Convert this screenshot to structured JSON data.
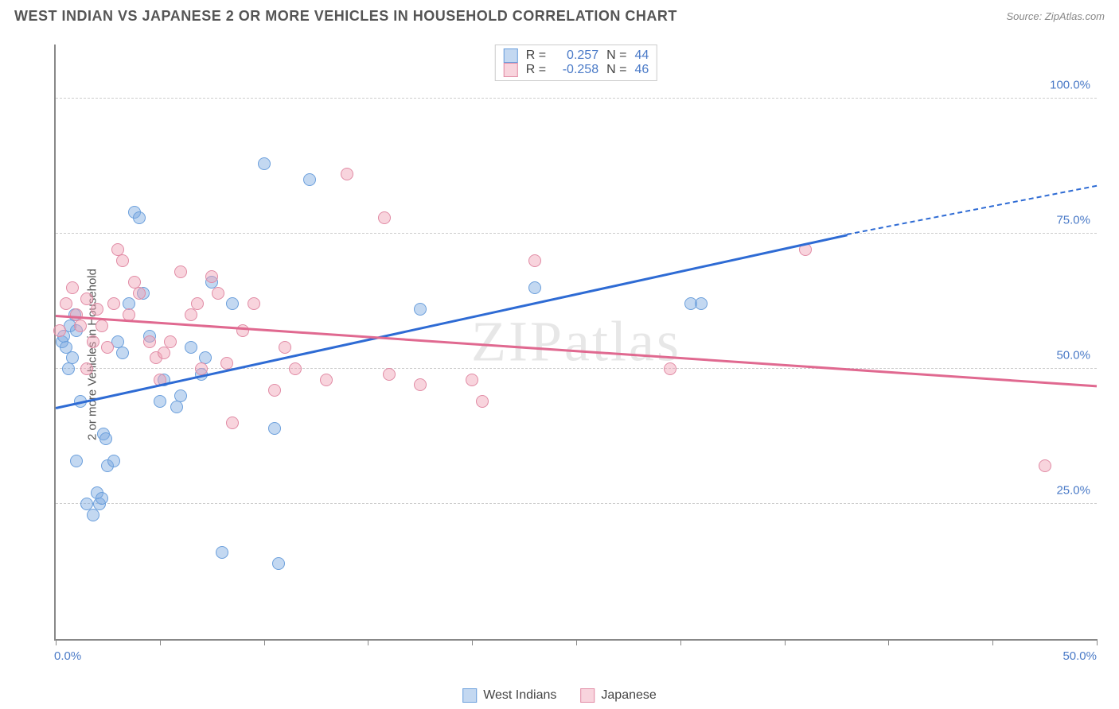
{
  "title": "WEST INDIAN VS JAPANESE 2 OR MORE VEHICLES IN HOUSEHOLD CORRELATION CHART",
  "source": "Source: ZipAtlas.com",
  "watermark": "ZIPatlas",
  "y_axis_label": "2 or more Vehicles in Household",
  "chart": {
    "type": "scatter",
    "xlim": [
      0,
      50
    ],
    "ylim": [
      0,
      110
    ],
    "x_ticks": [
      0,
      5,
      10,
      15,
      20,
      25,
      30,
      35,
      40,
      45,
      50
    ],
    "x_tick_labels": {
      "0": "0.0%",
      "50": "50.0%"
    },
    "y_ticks": [
      25,
      50,
      75,
      100
    ],
    "y_tick_labels": [
      "25.0%",
      "50.0%",
      "75.0%",
      "100.0%"
    ],
    "grid_color": "#cccccc",
    "background_color": "#ffffff",
    "point_radius": 8,
    "series": [
      {
        "name": "West Indians",
        "fill": "rgba(122,168,224,0.45)",
        "stroke": "#6b9fdc",
        "R": "0.257",
        "N": "44",
        "trend": {
          "x0": 0,
          "y0": 43,
          "x1": 38,
          "y1": 75,
          "color": "#2e6bd4",
          "dash_x1": 50,
          "dash_y1": 84
        },
        "points": [
          [
            0.3,
            55
          ],
          [
            0.5,
            54
          ],
          [
            0.6,
            50
          ],
          [
            0.8,
            52
          ],
          [
            0.7,
            58
          ],
          [
            0.9,
            60
          ],
          [
            0.4,
            56
          ],
          [
            1.0,
            57
          ],
          [
            1.2,
            44
          ],
          [
            1.0,
            33
          ],
          [
            1.5,
            25
          ],
          [
            1.8,
            23
          ],
          [
            2.0,
            27
          ],
          [
            2.1,
            25
          ],
          [
            2.2,
            26
          ],
          [
            2.5,
            32
          ],
          [
            2.8,
            33
          ],
          [
            2.3,
            38
          ],
          [
            2.4,
            37
          ],
          [
            3.0,
            55
          ],
          [
            3.2,
            53
          ],
          [
            3.5,
            62
          ],
          [
            3.8,
            79
          ],
          [
            4.0,
            78
          ],
          [
            4.2,
            64
          ],
          [
            4.5,
            56
          ],
          [
            5.0,
            44
          ],
          [
            5.2,
            48
          ],
          [
            5.8,
            43
          ],
          [
            6.0,
            45
          ],
          [
            6.5,
            54
          ],
          [
            7.0,
            49
          ],
          [
            7.2,
            52
          ],
          [
            7.5,
            66
          ],
          [
            8.0,
            16
          ],
          [
            8.5,
            62
          ],
          [
            10.0,
            88
          ],
          [
            10.5,
            39
          ],
          [
            10.7,
            14
          ],
          [
            12.2,
            85
          ],
          [
            17.5,
            61
          ],
          [
            23.0,
            65
          ],
          [
            30.5,
            62
          ],
          [
            31.0,
            62
          ]
        ]
      },
      {
        "name": "Japanese",
        "fill": "rgba(240,160,180,0.45)",
        "stroke": "#e18ba5",
        "R": "-0.258",
        "N": "46",
        "trend": {
          "x0": 0,
          "y0": 60,
          "x1": 50,
          "y1": 47,
          "color": "#e06990"
        },
        "points": [
          [
            0.5,
            62
          ],
          [
            0.8,
            65
          ],
          [
            1.0,
            60
          ],
          [
            1.2,
            58
          ],
          [
            1.5,
            63
          ],
          [
            1.8,
            55
          ],
          [
            1.5,
            50
          ],
          [
            2.0,
            61
          ],
          [
            2.2,
            58
          ],
          [
            2.5,
            54
          ],
          [
            2.8,
            62
          ],
          [
            3.0,
            72
          ],
          [
            3.2,
            70
          ],
          [
            3.5,
            60
          ],
          [
            3.8,
            66
          ],
          [
            4.0,
            64
          ],
          [
            4.5,
            55
          ],
          [
            4.8,
            52
          ],
          [
            5.0,
            48
          ],
          [
            5.2,
            53
          ],
          [
            5.5,
            55
          ],
          [
            6.0,
            68
          ],
          [
            6.5,
            60
          ],
          [
            6.8,
            62
          ],
          [
            7.0,
            50
          ],
          [
            7.5,
            67
          ],
          [
            7.8,
            64
          ],
          [
            8.2,
            51
          ],
          [
            8.5,
            40
          ],
          [
            9.0,
            57
          ],
          [
            9.5,
            62
          ],
          [
            10.5,
            46
          ],
          [
            11.0,
            54
          ],
          [
            11.5,
            50
          ],
          [
            13.0,
            48
          ],
          [
            14.0,
            86
          ],
          [
            15.8,
            78
          ],
          [
            16.0,
            49
          ],
          [
            17.5,
            47
          ],
          [
            20.0,
            48
          ],
          [
            20.5,
            44
          ],
          [
            23.0,
            70
          ],
          [
            29.5,
            50
          ],
          [
            36.0,
            72
          ],
          [
            47.5,
            32
          ],
          [
            0.2,
            57
          ]
        ]
      }
    ]
  },
  "stat_legend": {
    "rows": [
      {
        "swatch_fill": "rgba(122,168,224,0.45)",
        "swatch_stroke": "#6b9fdc",
        "R_label": "R =",
        "R": "0.257",
        "N_label": "N =",
        "N": "44"
      },
      {
        "swatch_fill": "rgba(240,160,180,0.45)",
        "swatch_stroke": "#e18ba5",
        "R_label": "R =",
        "R": "-0.258",
        "N_label": "N =",
        "N": "46"
      }
    ]
  },
  "bottom_legend": [
    {
      "swatch_fill": "rgba(122,168,224,0.45)",
      "swatch_stroke": "#6b9fdc",
      "label": "West Indians"
    },
    {
      "swatch_fill": "rgba(240,160,180,0.45)",
      "swatch_stroke": "#e18ba5",
      "label": "Japanese"
    }
  ]
}
